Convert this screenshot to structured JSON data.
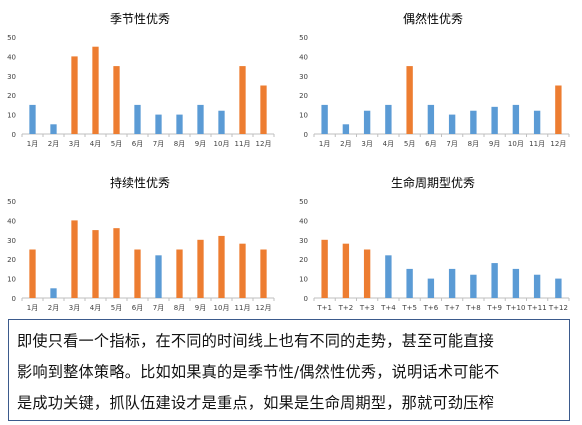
{
  "colors": {
    "blue": "#5b9bd5",
    "orange": "#ed7d31",
    "axis": "#bfbfbf",
    "text": "#404040"
  },
  "chart_data": [
    {
      "type": "bar",
      "title": "季节性优秀",
      "categories": [
        "1月",
        "2月",
        "3月",
        "4月",
        "5月",
        "6月",
        "7月",
        "8月",
        "9月",
        "10月",
        "11月",
        "12月"
      ],
      "values": [
        15,
        5,
        40,
        45,
        35,
        15,
        10,
        10,
        15,
        12,
        35,
        25
      ],
      "colors": [
        "blue",
        "blue",
        "orange",
        "orange",
        "orange",
        "blue",
        "blue",
        "blue",
        "blue",
        "blue",
        "orange",
        "orange"
      ],
      "ylim": [
        0,
        50
      ],
      "yticks": [
        0,
        10,
        20,
        30,
        40,
        50
      ]
    },
    {
      "type": "bar",
      "title": "偶然性优秀",
      "categories": [
        "1月",
        "2月",
        "3月",
        "4月",
        "5月",
        "6月",
        "7月",
        "8月",
        "9月",
        "10月",
        "11月",
        "12月"
      ],
      "values": [
        15,
        5,
        12,
        15,
        35,
        15,
        10,
        12,
        14,
        15,
        12,
        25
      ],
      "colors": [
        "blue",
        "blue",
        "blue",
        "blue",
        "orange",
        "blue",
        "blue",
        "blue",
        "blue",
        "blue",
        "blue",
        "orange"
      ],
      "ylim": [
        0,
        50
      ],
      "yticks": [
        0,
        10,
        20,
        30,
        40,
        50
      ]
    },
    {
      "type": "bar",
      "title": "持续性优秀",
      "categories": [
        "1月",
        "2月",
        "3月",
        "4月",
        "5月",
        "6月",
        "7月",
        "8月",
        "9月",
        "10月",
        "11月",
        "12月"
      ],
      "values": [
        25,
        5,
        40,
        35,
        36,
        25,
        22,
        25,
        30,
        32,
        28,
        25
      ],
      "colors": [
        "orange",
        "blue",
        "orange",
        "orange",
        "orange",
        "orange",
        "blue",
        "orange",
        "orange",
        "orange",
        "orange",
        "orange"
      ],
      "ylim": [
        0,
        50
      ],
      "yticks": [
        0,
        10,
        20,
        30,
        40,
        50
      ]
    },
    {
      "type": "bar",
      "title": "生命周期型优秀",
      "categories": [
        "T+1",
        "T+2",
        "T+3",
        "T+4",
        "T+5",
        "T+6",
        "T+7",
        "T+8",
        "T+9",
        "T+10",
        "T+11",
        "T+12"
      ],
      "values": [
        30,
        28,
        25,
        22,
        15,
        10,
        15,
        12,
        18,
        15,
        12,
        10
      ],
      "colors": [
        "orange",
        "orange",
        "orange",
        "blue",
        "blue",
        "blue",
        "blue",
        "blue",
        "blue",
        "blue",
        "blue",
        "blue"
      ],
      "ylim": [
        0,
        50
      ],
      "yticks": [
        0,
        10,
        20,
        30,
        40,
        50
      ]
    }
  ],
  "note": {
    "lines": [
      "即使只看一个指标，在不同的时间线上也有不同的走势，甚至可能直接",
      "影响到整体策略。比如如果真的是季节性/偶然性优秀，说明话术可能不",
      "是成功关键，抓队伍建设才是重点，如果是生命周期型，那就可劲压榨"
    ]
  }
}
